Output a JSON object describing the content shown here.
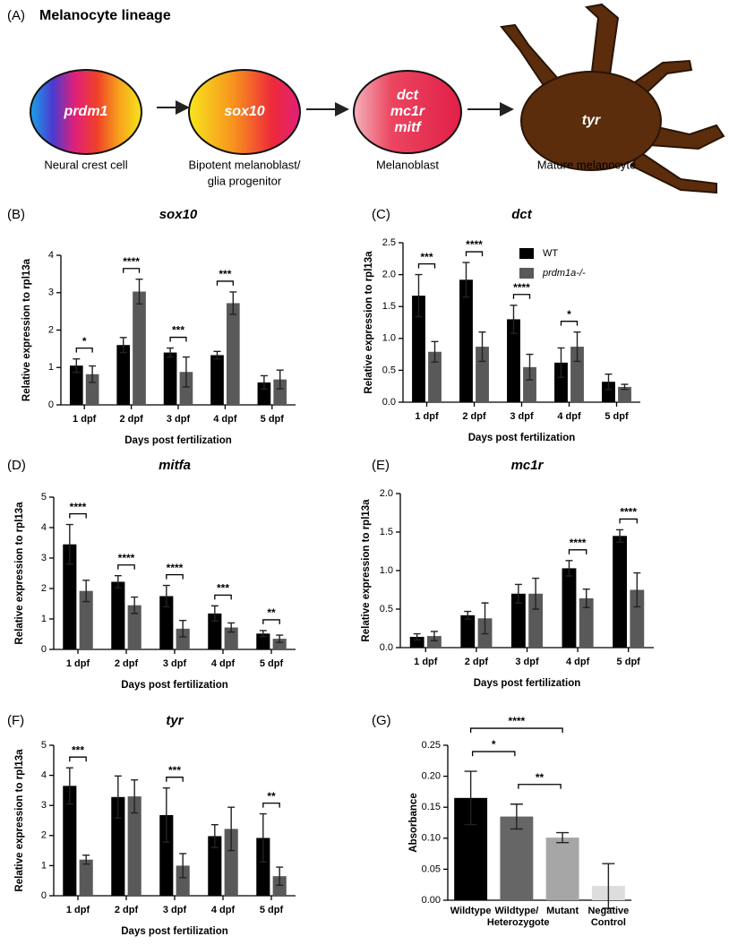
{
  "diagram": {
    "label": "(A)",
    "title": "Melanocyte lineage",
    "nodes": [
      {
        "label": [
          "prdm1"
        ],
        "caption": [
          "Neural crest cell"
        ]
      },
      {
        "label": [
          "sox10"
        ],
        "caption": [
          "Bipotent melanoblast/",
          "glia progenitor"
        ]
      },
      {
        "label": [
          "dct",
          "mc1r",
          "mitf"
        ],
        "caption": [
          "Melanoblast"
        ]
      },
      {
        "label": [
          "tyr"
        ],
        "caption": [
          "Mature melanocyte"
        ]
      }
    ]
  },
  "chart_data": [
    {
      "type": "bar",
      "label": "(B)",
      "title": "sox10",
      "ylabel": "Relative expression to rpl13a",
      "xlabel": "Days post fertilization",
      "categories": [
        "1 dpf",
        "2 dpf",
        "3 dpf",
        "4 dpf",
        "5 dpf"
      ],
      "series": [
        {
          "color": "#000000",
          "values": [
            1.05,
            1.6,
            1.4,
            1.33,
            0.6
          ],
          "errors": [
            0.18,
            0.2,
            0.12,
            0.1,
            0.18
          ]
        },
        {
          "color": "#595959",
          "values": [
            0.82,
            3.03,
            0.88,
            2.72,
            0.68
          ],
          "errors": [
            0.22,
            0.33,
            0.4,
            0.3,
            0.25
          ]
        }
      ],
      "significance": [
        "*",
        "****",
        "***",
        "***",
        null
      ],
      "ylim": [
        0,
        4
      ],
      "yticks": [
        0,
        1,
        2,
        3,
        4
      ]
    },
    {
      "type": "bar",
      "label": "(C)",
      "title": "dct",
      "ylabel": "Relative expression to rpl13a",
      "xlabel": "Days post fertilization",
      "categories": [
        "1 dpf",
        "2 dpf",
        "3 dpf",
        "4 dpf",
        "5 dpf"
      ],
      "series": [
        {
          "name": "WT",
          "color": "#000000",
          "values": [
            1.67,
            1.92,
            1.3,
            0.62,
            0.32
          ],
          "errors": [
            0.33,
            0.27,
            0.22,
            0.23,
            0.12
          ]
        },
        {
          "name": "prdm1a-/-",
          "color": "#595959",
          "values": [
            0.79,
            0.87,
            0.55,
            0.87,
            0.24
          ],
          "errors": [
            0.16,
            0.23,
            0.2,
            0.23,
            0.04
          ]
        }
      ],
      "significance": [
        "***",
        "****",
        "****",
        "*",
        null
      ],
      "legend": "upper right",
      "ylim": [
        0,
        2.5
      ],
      "yticks": [
        {
          "value": 0,
          "label": "0.0"
        },
        0.5,
        {
          "value": 1,
          "label": "1.0"
        },
        1.5,
        {
          "value": 2,
          "label": "2.0"
        },
        2.5
      ]
    },
    {
      "type": "bar",
      "label": "(D)",
      "title": "mitfa",
      "ylabel": "Relative expression to rpl13a",
      "xlabel": "Days post fertilization",
      "categories": [
        "1 dpf",
        "2 dpf",
        "3 dpf",
        "4 dpf",
        "5 dpf"
      ],
      "series": [
        {
          "color": "#000000",
          "values": [
            3.45,
            2.22,
            1.75,
            1.18,
            0.52
          ],
          "errors": [
            0.65,
            0.2,
            0.35,
            0.25,
            0.1
          ]
        },
        {
          "color": "#595959",
          "values": [
            1.92,
            1.45,
            0.68,
            0.72,
            0.35
          ],
          "errors": [
            0.35,
            0.27,
            0.27,
            0.15,
            0.12
          ]
        }
      ],
      "significance": [
        "****",
        "****",
        "****",
        "***",
        "**"
      ],
      "ylim": [
        0,
        5
      ],
      "yticks": [
        0,
        1,
        2,
        3,
        4,
        5
      ]
    },
    {
      "type": "bar",
      "label": "(E)",
      "title": "mc1r",
      "ylabel": "Relative expression to rpl13a",
      "xlabel": "Days post fertilization",
      "categories": [
        "1 dpf",
        "2 dpf",
        "3 dpf",
        "4 dpf",
        "5 dpf"
      ],
      "series": [
        {
          "color": "#000000",
          "values": [
            0.14,
            0.42,
            0.7,
            1.03,
            1.45
          ],
          "errors": [
            0.04,
            0.05,
            0.12,
            0.1,
            0.08
          ]
        },
        {
          "color": "#595959",
          "values": [
            0.15,
            0.38,
            0.7,
            0.64,
            0.75
          ],
          "errors": [
            0.06,
            0.2,
            0.2,
            0.12,
            0.22
          ]
        }
      ],
      "significance": [
        null,
        null,
        null,
        "****",
        "****"
      ],
      "ylim": [
        0,
        2
      ],
      "yticks": [
        {
          "value": 0,
          "label": "0.0"
        },
        0.5,
        {
          "value": 1,
          "label": "1.0"
        },
        1.5,
        {
          "value": 2,
          "label": "2.0"
        }
      ]
    },
    {
      "type": "bar",
      "label": "(F)",
      "title": "tyr",
      "ylabel": "Relative expression to rpl13a",
      "xlabel": "Days post fertilization",
      "categories": [
        "1 dpf",
        "2 dpf",
        "3 dpf",
        "4 dpf",
        "5 dpf"
      ],
      "series": [
        {
          "color": "#000000",
          "values": [
            3.65,
            3.28,
            2.68,
            1.98,
            1.92
          ],
          "errors": [
            0.6,
            0.7,
            0.9,
            0.38,
            0.8
          ]
        },
        {
          "color": "#595959",
          "values": [
            1.2,
            3.3,
            1.0,
            2.22,
            0.65
          ],
          "errors": [
            0.15,
            0.55,
            0.4,
            0.72,
            0.3
          ]
        }
      ],
      "significance": [
        "***",
        null,
        "***",
        null,
        "**"
      ],
      "ylim": [
        0,
        5
      ],
      "yticks": [
        0,
        1,
        2,
        3,
        4,
        5
      ]
    },
    {
      "type": "bar",
      "label": "(G)",
      "ylabel": "Absorbance",
      "categories": [
        "Wildtype",
        "Wildtype/ Heterozygote",
        "Mutant",
        "Negative Control"
      ],
      "values": [
        0.165,
        0.135,
        0.101,
        0.023
      ],
      "errors": [
        0.043,
        0.02,
        0.008,
        0.036
      ],
      "colors": [
        "#000000",
        "#666666",
        "#a6a6a6",
        "#dddddd"
      ],
      "comparisons": [
        {
          "groups": [
            "Wildtype",
            "Mutant"
          ],
          "label": "****"
        },
        {
          "groups": [
            "Wildtype",
            "Wildtype/ Heterozygote"
          ],
          "label": "*"
        },
        {
          "groups": [
            "Wildtype/ Heterozygote",
            "Mutant"
          ],
          "label": "**"
        }
      ],
      "ylim": [
        0,
        0.25
      ],
      "yticks": [
        {
          "value": 0,
          "label": "0.00"
        },
        0.05,
        {
          "value": 0.1,
          "label": "0.10"
        },
        0.15,
        {
          "value": 0.2,
          "label": "0.20"
        },
        0.25
      ]
    }
  ]
}
